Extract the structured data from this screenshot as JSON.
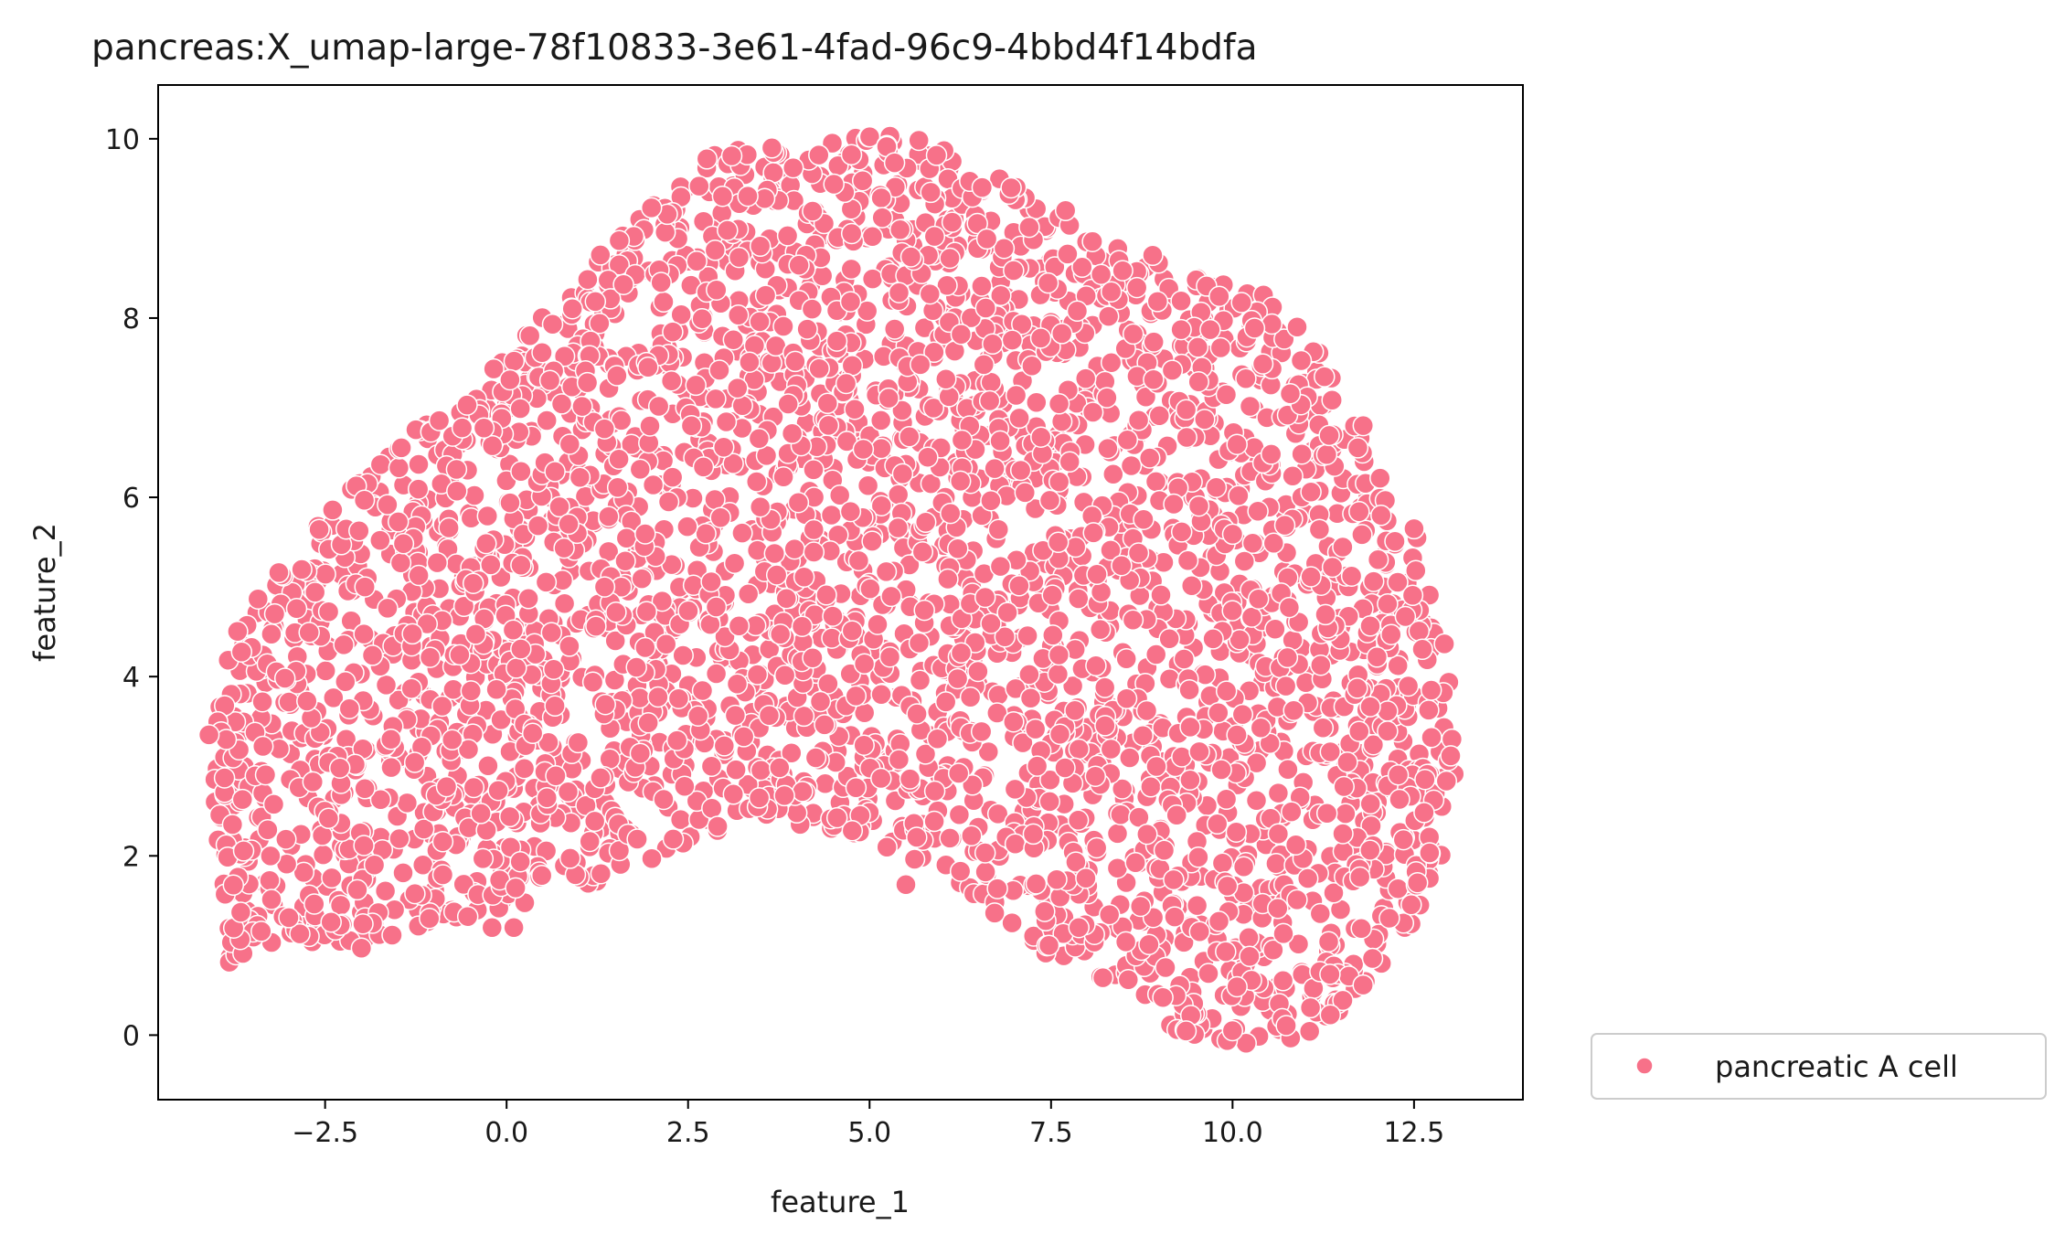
{
  "chart_data": {
    "type": "scatter",
    "title": "pancreas:X_umap-large-78f10833-3e61-4fad-96c9-4bbd4f14bdfa",
    "xlabel": "feature_1",
    "ylabel": "feature_2",
    "xlim": [
      -4.8,
      14.0
    ],
    "ylim": [
      -0.72,
      10.6
    ],
    "xticks": [
      -2.5,
      0.0,
      2.5,
      5.0,
      7.5,
      10.0,
      12.5
    ],
    "xtick_labels": [
      "−2.5",
      "0.0",
      "2.5",
      "5.0",
      "7.5",
      "10.0",
      "12.5"
    ],
    "yticks": [
      0,
      2,
      4,
      6,
      8,
      10
    ],
    "ytick_labels": [
      "0",
      "2",
      "4",
      "6",
      "8",
      "10"
    ],
    "grid": false,
    "legend_position": "outside-bottom-right",
    "series": [
      {
        "name": "pancreatic A cell",
        "color": "#f77189",
        "region_outline": [
          [
            -4.0,
            3.35
          ],
          [
            -3.9,
            4.3
          ],
          [
            -3.4,
            4.9
          ],
          [
            -2.9,
            5.45
          ],
          [
            -2.2,
            6.1
          ],
          [
            -1.6,
            6.55
          ],
          [
            -0.8,
            7.05
          ],
          [
            0.0,
            7.6
          ],
          [
            0.8,
            8.3
          ],
          [
            1.6,
            9.0
          ],
          [
            2.5,
            9.65
          ],
          [
            3.2,
            10.0
          ],
          [
            4.0,
            9.9
          ],
          [
            5.0,
            10.05
          ],
          [
            5.8,
            10.0
          ],
          [
            6.5,
            9.75
          ],
          [
            7.3,
            9.3
          ],
          [
            8.0,
            8.95
          ],
          [
            8.7,
            8.7
          ],
          [
            9.5,
            8.5
          ],
          [
            10.3,
            8.4
          ],
          [
            11.2,
            7.7
          ],
          [
            11.6,
            6.9
          ],
          [
            12.1,
            6.3
          ],
          [
            12.5,
            5.65
          ],
          [
            12.8,
            4.9
          ],
          [
            13.05,
            4.0
          ],
          [
            13.1,
            3.0
          ],
          [
            13.0,
            2.0
          ],
          [
            12.6,
            1.4
          ],
          [
            12.1,
            0.8
          ],
          [
            11.5,
            0.2
          ],
          [
            11.0,
            -0.05
          ],
          [
            10.1,
            -0.2
          ],
          [
            9.6,
            -0.1
          ],
          [
            9.0,
            0.15
          ],
          [
            8.2,
            0.6
          ],
          [
            7.2,
            1.0
          ],
          [
            6.2,
            1.7
          ],
          [
            5.2,
            2.1
          ],
          [
            4.2,
            2.3
          ],
          [
            3.3,
            2.45
          ],
          [
            2.5,
            2.1
          ],
          [
            1.5,
            1.75
          ],
          [
            0.5,
            1.5
          ],
          [
            -0.6,
            1.3
          ],
          [
            -1.6,
            1.1
          ],
          [
            -2.6,
            1.0
          ],
          [
            -3.2,
            0.9
          ],
          [
            -3.9,
            0.8
          ],
          [
            -3.9,
            1.6
          ],
          [
            -4.05,
            2.6
          ]
        ],
        "outliers": [
          [
            5.5,
            1.68
          ],
          [
            -2.0,
            0.97
          ],
          [
            -0.2,
            1.2
          ],
          [
            0.1,
            1.2
          ],
          [
            7.7,
            9.2
          ],
          [
            8.9,
            8.7
          ],
          [
            11.8,
            6.8
          ],
          [
            12.5,
            5.65
          ],
          [
            -4.1,
            3.35
          ],
          [
            10.0,
            0.05
          ]
        ]
      }
    ]
  }
}
